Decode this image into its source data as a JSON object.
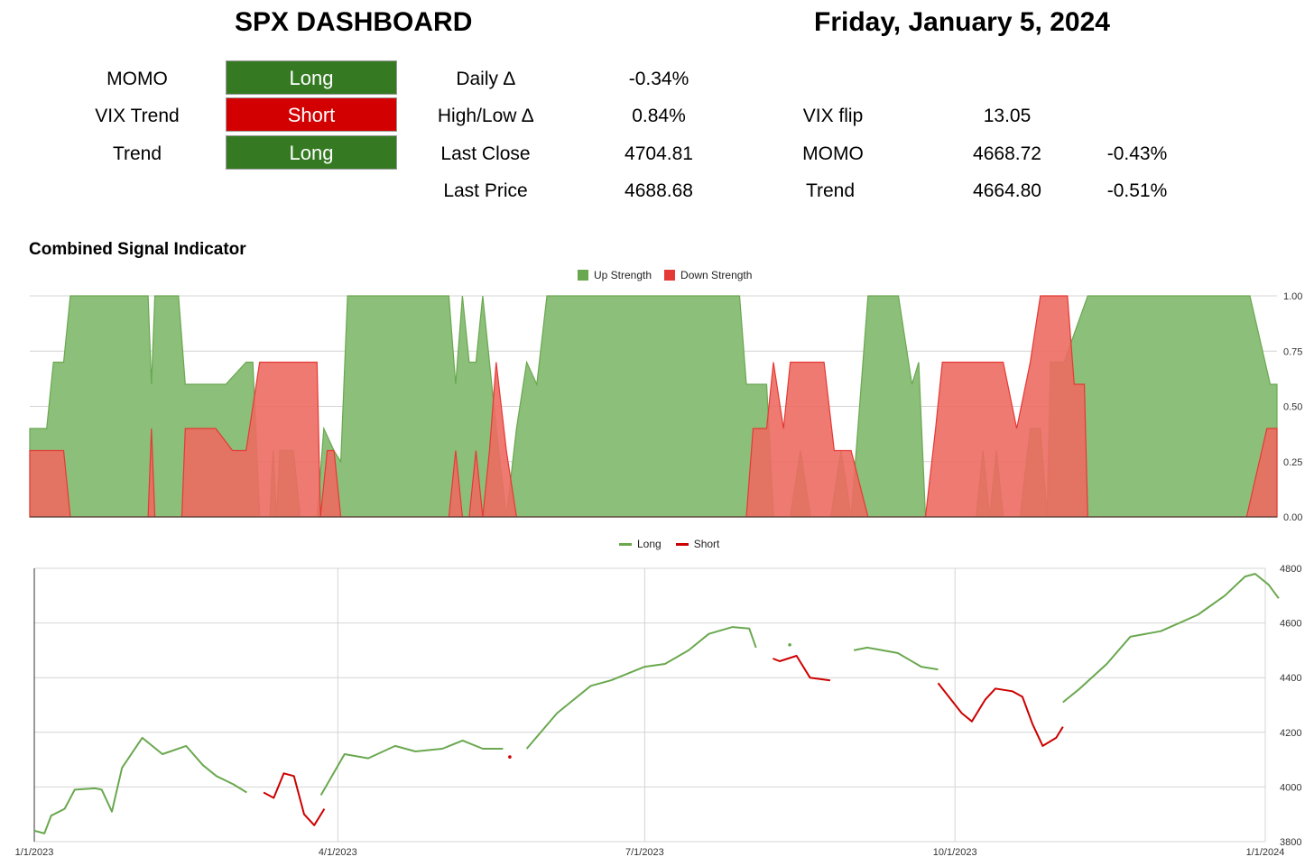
{
  "header": {
    "title": "SPX DASHBOARD",
    "date": "Friday, January 5, 2024"
  },
  "signals": [
    {
      "label": "MOMO",
      "value": "Long",
      "state": "long"
    },
    {
      "label": "VIX Trend",
      "value": "Short",
      "state": "short"
    },
    {
      "label": "Trend",
      "value": "Long",
      "state": "long"
    }
  ],
  "stats": {
    "daily_label": "Daily ∆",
    "daily_value": "-0.34%",
    "highlow_label": "High/Low ∆",
    "highlow_value": "0.84%",
    "lastclose_label": "Last Close",
    "lastclose_value": "4704.81",
    "lastprice_label": "Last Price",
    "lastprice_value": "4688.68",
    "vixflip_label": "VIX flip",
    "vixflip_value": "13.05",
    "momo_label": "MOMO",
    "momo_value": "4668.72",
    "momo_pct": "-0.43%",
    "trend_label": "Trend",
    "trend_value": "4664.80",
    "trend_pct": "-0.51%"
  },
  "colors": {
    "long": "#357a22",
    "short": "#d20000",
    "up_fill": "#8cbf7a",
    "up_line": "#6aa84f",
    "down_fill": "#ec6b62",
    "down_line": "#e53935",
    "price_long": "#6aa84f",
    "price_short": "#cc0000"
  },
  "chart_data": [
    {
      "type": "area",
      "title": "Combined Signal Indicator",
      "legend_position": "top-center",
      "x_range": [
        "2023-01-01",
        "2024-01-05"
      ],
      "ylim": [
        0,
        1
      ],
      "yticks": [
        "0.00",
        "0.25",
        "0.50",
        "0.75",
        "1.00"
      ],
      "grid": true,
      "series": [
        {
          "name": "Up Strength",
          "color": "#8cbf7a",
          "points": [
            [
              "2023-01-01",
              0.4
            ],
            [
              "2023-01-06",
              0.4
            ],
            [
              "2023-01-08",
              0.7
            ],
            [
              "2023-01-11",
              0.7
            ],
            [
              "2023-01-13",
              1.0
            ],
            [
              "2023-02-05",
              1.0
            ],
            [
              "2023-02-06",
              0.6
            ],
            [
              "2023-02-07",
              1.0
            ],
            [
              "2023-02-14",
              1.0
            ],
            [
              "2023-02-16",
              0.6
            ],
            [
              "2023-02-28",
              0.6
            ],
            [
              "2023-03-06",
              0.7
            ],
            [
              "2023-03-08",
              0.7
            ],
            [
              "2023-03-10",
              0.0
            ],
            [
              "2023-03-13",
              0.0
            ],
            [
              "2023-03-14",
              0.3
            ],
            [
              "2023-03-15",
              0.0
            ],
            [
              "2023-03-16",
              0.3
            ],
            [
              "2023-03-20",
              0.3
            ],
            [
              "2023-03-22",
              0.0
            ],
            [
              "2023-03-27",
              0.0
            ],
            [
              "2023-03-29",
              0.4
            ],
            [
              "2023-04-01",
              0.3
            ],
            [
              "2023-04-03",
              0.25
            ],
            [
              "2023-04-05",
              1.0
            ],
            [
              "2023-05-05",
              1.0
            ],
            [
              "2023-05-07",
              0.6
            ],
            [
              "2023-05-09",
              1.0
            ],
            [
              "2023-05-11",
              0.7
            ],
            [
              "2023-05-13",
              0.7
            ],
            [
              "2023-05-15",
              1.0
            ],
            [
              "2023-05-17",
              0.7
            ],
            [
              "2023-05-19",
              0.4
            ],
            [
              "2023-05-22",
              0.0
            ],
            [
              "2023-05-25",
              0.4
            ],
            [
              "2023-05-28",
              0.7
            ],
            [
              "2023-05-31",
              0.6
            ],
            [
              "2023-06-03",
              1.0
            ],
            [
              "2023-07-30",
              1.0
            ],
            [
              "2023-08-01",
              0.6
            ],
            [
              "2023-08-07",
              0.6
            ],
            [
              "2023-08-09",
              0.0
            ],
            [
              "2023-08-14",
              0.0
            ],
            [
              "2023-08-17",
              0.3
            ],
            [
              "2023-08-20",
              0.0
            ],
            [
              "2023-08-26",
              0.0
            ],
            [
              "2023-08-29",
              0.3
            ],
            [
              "2023-09-01",
              0.0
            ],
            [
              "2023-09-03",
              0.4
            ],
            [
              "2023-09-06",
              1.0
            ],
            [
              "2023-09-15",
              1.0
            ],
            [
              "2023-09-19",
              0.6
            ],
            [
              "2023-09-21",
              0.7
            ],
            [
              "2023-09-23",
              0.0
            ],
            [
              "2023-10-08",
              0.0
            ],
            [
              "2023-10-10",
              0.3
            ],
            [
              "2023-10-12",
              0.0
            ],
            [
              "2023-10-14",
              0.3
            ],
            [
              "2023-10-16",
              0.0
            ],
            [
              "2023-10-21",
              0.0
            ],
            [
              "2023-10-24",
              0.4
            ],
            [
              "2023-10-27",
              0.4
            ],
            [
              "2023-10-29",
              0.0
            ],
            [
              "2023-10-30",
              0.7
            ],
            [
              "2023-11-03",
              0.7
            ],
            [
              "2023-11-10",
              1.0
            ],
            [
              "2023-12-28",
              1.0
            ],
            [
              "2024-01-03",
              0.6
            ],
            [
              "2024-01-05",
              0.6
            ]
          ]
        },
        {
          "name": "Down Strength",
          "color": "#ec6b62",
          "points": [
            [
              "2023-01-01",
              0.3
            ],
            [
              "2023-01-11",
              0.3
            ],
            [
              "2023-01-13",
              0.0
            ],
            [
              "2023-02-05",
              0.0
            ],
            [
              "2023-02-06",
              0.4
            ],
            [
              "2023-02-07",
              0.0
            ],
            [
              "2023-02-15",
              0.0
            ],
            [
              "2023-02-16",
              0.4
            ],
            [
              "2023-02-25",
              0.4
            ],
            [
              "2023-03-02",
              0.3
            ],
            [
              "2023-03-06",
              0.3
            ],
            [
              "2023-03-10",
              0.7
            ],
            [
              "2023-03-27",
              0.7
            ],
            [
              "2023-03-28",
              0.0
            ],
            [
              "2023-03-30",
              0.3
            ],
            [
              "2023-04-01",
              0.3
            ],
            [
              "2023-04-03",
              0.0
            ],
            [
              "2023-05-05",
              0.0
            ],
            [
              "2023-05-07",
              0.3
            ],
            [
              "2023-05-09",
              0.0
            ],
            [
              "2023-05-11",
              0.0
            ],
            [
              "2023-05-13",
              0.3
            ],
            [
              "2023-05-15",
              0.0
            ],
            [
              "2023-05-17",
              0.3
            ],
            [
              "2023-05-19",
              0.7
            ],
            [
              "2023-05-22",
              0.3
            ],
            [
              "2023-05-25",
              0.0
            ],
            [
              "2023-08-01",
              0.0
            ],
            [
              "2023-08-03",
              0.4
            ],
            [
              "2023-08-07",
              0.4
            ],
            [
              "2023-08-09",
              0.7
            ],
            [
              "2023-08-12",
              0.4
            ],
            [
              "2023-08-14",
              0.7
            ],
            [
              "2023-08-24",
              0.7
            ],
            [
              "2023-08-27",
              0.3
            ],
            [
              "2023-09-01",
              0.3
            ],
            [
              "2023-09-06",
              0.0
            ],
            [
              "2023-09-23",
              0.0
            ],
            [
              "2023-09-26",
              0.4
            ],
            [
              "2023-09-28",
              0.7
            ],
            [
              "2023-10-16",
              0.7
            ],
            [
              "2023-10-20",
              0.4
            ],
            [
              "2023-10-24",
              0.7
            ],
            [
              "2023-10-27",
              1.0
            ],
            [
              "2023-11-04",
              1.0
            ],
            [
              "2023-11-06",
              0.6
            ],
            [
              "2023-11-09",
              0.6
            ],
            [
              "2023-11-10",
              0.0
            ],
            [
              "2023-12-27",
              0.0
            ],
            [
              "2024-01-02",
              0.4
            ],
            [
              "2024-01-05",
              0.4
            ]
          ]
        }
      ]
    },
    {
      "type": "line",
      "title": "",
      "legend_position": "top-center",
      "xticks": [
        "1/1/2023",
        "4/1/2023",
        "7/1/2023",
        "10/1/2023",
        "1/1/2024"
      ],
      "ylim": [
        3800,
        4800
      ],
      "yticks": [
        "3800",
        "4000",
        "4200",
        "4400",
        "4600",
        "4800"
      ],
      "grid": true,
      "series": [
        {
          "name": "Long",
          "color": "#6aa84f",
          "segments": [
            [
              [
                "2023-01-01",
                3840
              ],
              [
                "2023-01-04",
                3830
              ],
              [
                "2023-01-06",
                3895
              ],
              [
                "2023-01-10",
                3920
              ],
              [
                "2023-01-13",
                3990
              ],
              [
                "2023-01-19",
                3995
              ],
              [
                "2023-01-21",
                3990
              ],
              [
                "2023-01-24",
                3910
              ],
              [
                "2023-01-27",
                4070
              ],
              [
                "2023-02-02",
                4180
              ],
              [
                "2023-02-08",
                4120
              ],
              [
                "2023-02-15",
                4150
              ],
              [
                "2023-02-20",
                4080
              ],
              [
                "2023-02-24",
                4040
              ],
              [
                "2023-03-01",
                4010
              ],
              [
                "2023-03-05",
                3980
              ]
            ],
            [
              [
                "2023-03-27",
                3970
              ],
              [
                "2023-04-03",
                4120
              ],
              [
                "2023-04-10",
                4105
              ],
              [
                "2023-04-18",
                4150
              ],
              [
                "2023-04-24",
                4130
              ],
              [
                "2023-05-02",
                4140
              ],
              [
                "2023-05-08",
                4170
              ],
              [
                "2023-05-14",
                4140
              ],
              [
                "2023-05-20",
                4140
              ]
            ],
            [
              [
                "2023-05-27",
                4140
              ],
              [
                "2023-06-05",
                4270
              ],
              [
                "2023-06-15",
                4370
              ],
              [
                "2023-06-21",
                4390
              ],
              [
                "2023-07-01",
                4440
              ],
              [
                "2023-07-07",
                4450
              ],
              [
                "2023-07-14",
                4500
              ],
              [
                "2023-07-20",
                4560
              ],
              [
                "2023-07-27",
                4585
              ],
              [
                "2023-08-01",
                4580
              ],
              [
                "2023-08-03",
                4510
              ]
            ],
            [
              [
                "2023-08-13",
                4520
              ]
            ],
            [
              [
                "2023-09-01",
                4500
              ],
              [
                "2023-09-05",
                4510
              ],
              [
                "2023-09-14",
                4490
              ],
              [
                "2023-09-21",
                4440
              ],
              [
                "2023-09-26",
                4430
              ]
            ],
            [
              [
                "2023-11-02",
                4310
              ],
              [
                "2023-11-07",
                4360
              ],
              [
                "2023-11-15",
                4450
              ],
              [
                "2023-11-22",
                4550
              ],
              [
                "2023-12-01",
                4570
              ],
              [
                "2023-12-12",
                4630
              ],
              [
                "2023-12-20",
                4700
              ],
              [
                "2023-12-26",
                4770
              ],
              [
                "2023-12-29",
                4780
              ],
              [
                "2024-01-02",
                4740
              ],
              [
                "2024-01-05",
                4690
              ]
            ]
          ]
        },
        {
          "name": "Short",
          "color": "#cc0000",
          "segments": [
            [
              [
                "2023-03-10",
                3980
              ],
              [
                "2023-03-13",
                3960
              ],
              [
                "2023-03-16",
                4050
              ],
              [
                "2023-03-19",
                4040
              ],
              [
                "2023-03-22",
                3900
              ],
              [
                "2023-03-25",
                3860
              ],
              [
                "2023-03-28",
                3920
              ]
            ],
            [
              [
                "2023-05-22",
                4110
              ]
            ],
            [
              [
                "2023-08-08",
                4470
              ],
              [
                "2023-08-10",
                4460
              ],
              [
                "2023-08-15",
                4480
              ],
              [
                "2023-08-19",
                4400
              ],
              [
                "2023-08-25",
                4390
              ]
            ],
            [
              [
                "2023-09-26",
                4380
              ],
              [
                "2023-10-03",
                4270
              ],
              [
                "2023-10-06",
                4240
              ],
              [
                "2023-10-10",
                4320
              ],
              [
                "2023-10-13",
                4360
              ],
              [
                "2023-10-18",
                4350
              ],
              [
                "2023-10-21",
                4330
              ],
              [
                "2023-10-24",
                4230
              ],
              [
                "2023-10-27",
                4150
              ],
              [
                "2023-10-31",
                4180
              ],
              [
                "2023-11-02",
                4220
              ]
            ]
          ]
        }
      ]
    }
  ]
}
